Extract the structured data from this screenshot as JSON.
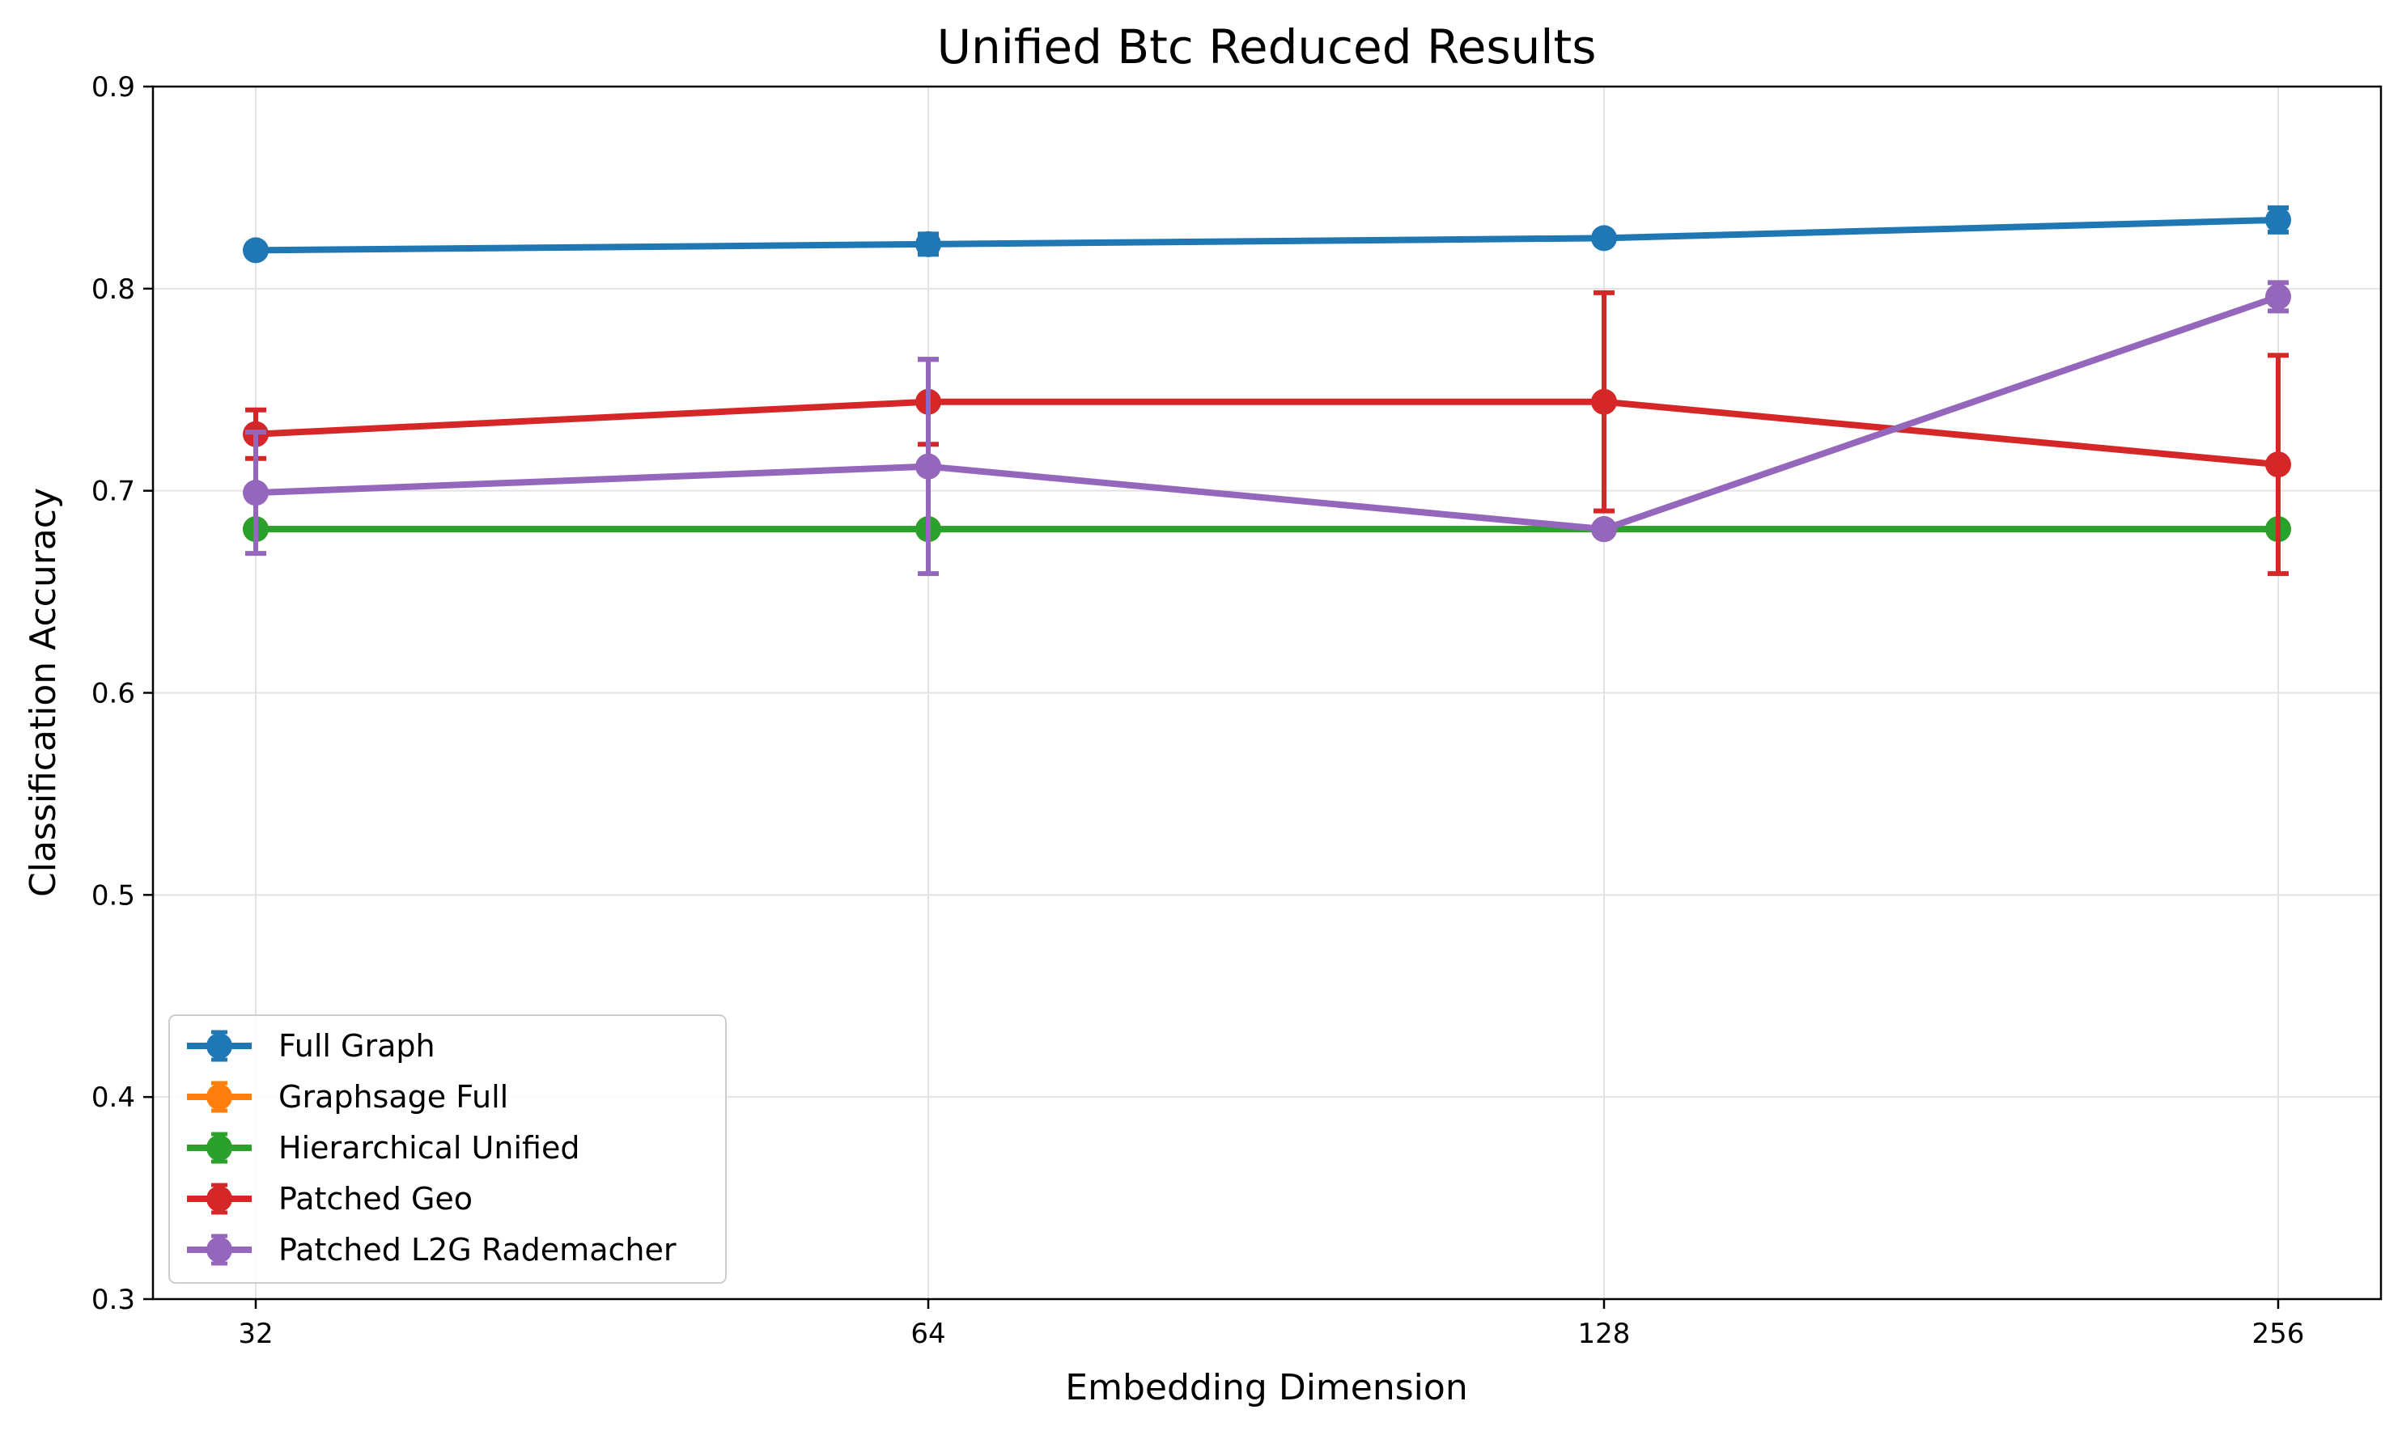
{
  "chart_data": {
    "type": "line",
    "title": "Unified Btc Reduced Results",
    "xlabel": "Embedding Dimension",
    "ylabel": "Classification Accuracy",
    "categories": [
      "32",
      "64",
      "128",
      "256"
    ],
    "y_ticks": [
      "0.3",
      "0.4",
      "0.5",
      "0.6",
      "0.7",
      "0.8",
      "0.9"
    ],
    "ylim": [
      0.3,
      0.9
    ],
    "grid": true,
    "legend_position": "lower-left",
    "series": [
      {
        "name": "Full Graph",
        "color": "#1f77b4",
        "values": [
          0.819,
          0.822,
          0.825,
          0.834
        ],
        "errors": [
          0.002,
          0.005,
          0.002,
          0.006
        ]
      },
      {
        "name": "Graphsage Full",
        "color": "#ff7f0e",
        "values": [
          0.681,
          0.681,
          0.681,
          0.681
        ],
        "errors": [
          0,
          0,
          0,
          0
        ]
      },
      {
        "name": "Hierarchical Unified",
        "color": "#2ca02c",
        "values": [
          0.681,
          0.681,
          0.681,
          0.681
        ],
        "errors": [
          0,
          0,
          0,
          0
        ]
      },
      {
        "name": "Patched Geo",
        "color": "#d62728",
        "values": [
          0.728,
          0.744,
          0.744,
          0.713
        ],
        "errors": [
          0.012,
          0.021,
          0.054,
          0.054
        ]
      },
      {
        "name": "Patched L2G Rademacher",
        "color": "#9467bd",
        "values": [
          0.699,
          0.712,
          0.681,
          0.796
        ],
        "errors": [
          0.03,
          0.053,
          0.0,
          0.007
        ]
      }
    ]
  }
}
